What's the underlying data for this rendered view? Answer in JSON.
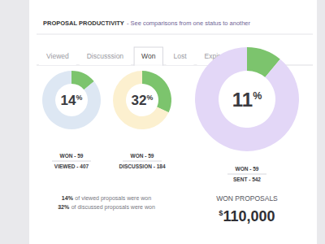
{
  "header": {
    "title": "PROPOSAL PRODUCTIVITY",
    "subtitle": "- See comparisons from one status to another"
  },
  "tabs": {
    "items": [
      "Viewed",
      "Discusssion",
      "Won",
      "Lost",
      "Expired"
    ],
    "active": "Won"
  },
  "chart_data": [
    {
      "type": "donut",
      "values": [
        14,
        86
      ],
      "value_labels": [
        "14%",
        null
      ],
      "data_labels": true,
      "colors": [
        "#7cc46d",
        "#dde7f3"
      ],
      "annotations": [
        "WON - 59",
        "VIEWED - 407"
      ]
    },
    {
      "type": "donut",
      "values": [
        32,
        68
      ],
      "value_labels": [
        "32%",
        null
      ],
      "data_labels": true,
      "colors": [
        "#7cc46d",
        "#fcf0cf"
      ],
      "annotations": [
        "WON - 59",
        "DISCUSSION - 184"
      ]
    },
    {
      "type": "donut",
      "values": [
        11,
        89
      ],
      "value_labels": [
        "11%",
        null
      ],
      "data_labels": true,
      "colors": [
        "#7cc46d",
        "#e3d7f7"
      ],
      "annotations": [
        "WON - 59",
        "SENT - 542"
      ]
    }
  ],
  "summary": [
    [
      "14%",
      "of viewed proposals were won"
    ],
    [
      "32%",
      "of discussed proposals were won"
    ]
  ],
  "total": {
    "label": "WON PROPOSALS",
    "value": "$110,000"
  }
}
